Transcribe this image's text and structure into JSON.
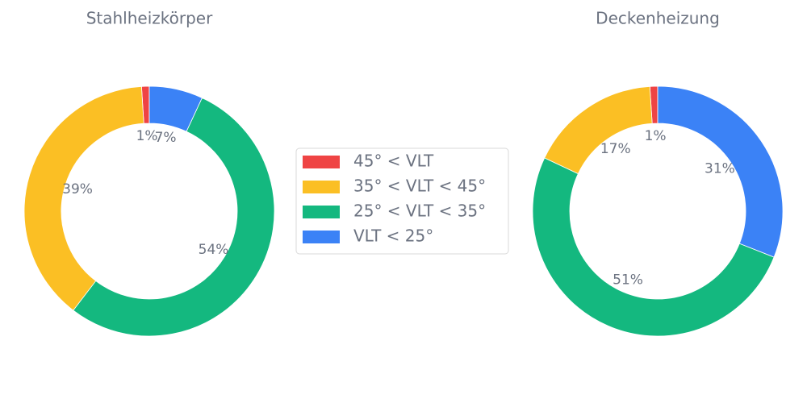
{
  "chart_data": [
    {
      "type": "pie",
      "title": "Stahlheizkörper",
      "values": [
        1,
        39,
        54,
        7
      ],
      "value_labels": [
        "1%",
        "39%",
        "54%",
        "7%"
      ]
    },
    {
      "type": "pie",
      "title": "Deckenheizung",
      "values": [
        1,
        17,
        51,
        31
      ],
      "value_labels": [
        "1%",
        "17%",
        "51%",
        "31%"
      ]
    }
  ],
  "legend": {
    "labels": [
      "45° < VLT",
      "35° < VLT < 45°",
      "25° < VLT < 35°",
      "VLT < 25°"
    ],
    "colors": [
      "#ef4444",
      "#fbbf24",
      "#14b87f",
      "#3b82f6"
    ]
  }
}
